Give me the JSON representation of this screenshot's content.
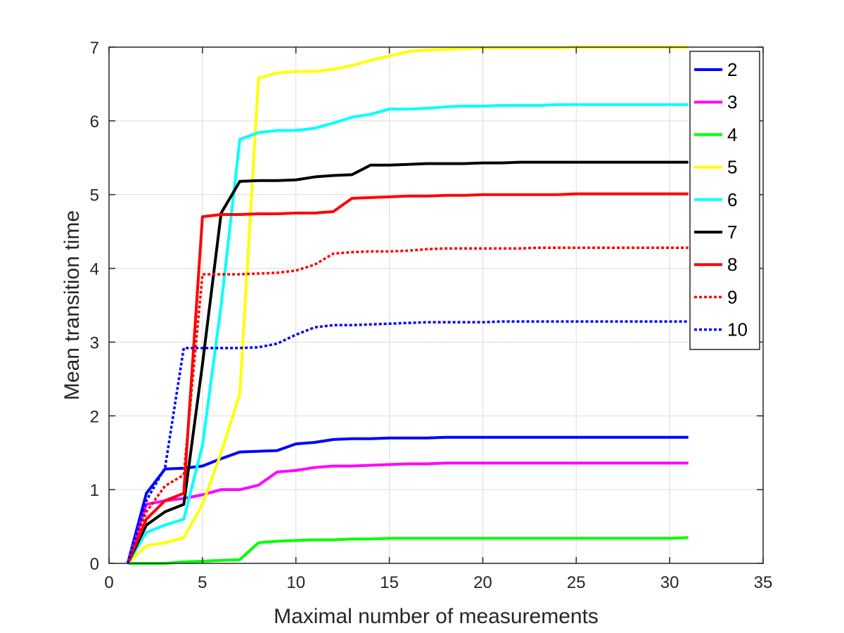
{
  "chart_data": {
    "type": "line",
    "xlabel": "Maximal number of measurements",
    "ylabel": "Mean transition time",
    "xlim": [
      0,
      35
    ],
    "ylim": [
      0,
      7
    ],
    "xticks": [
      0,
      5,
      10,
      15,
      20,
      25,
      30,
      35
    ],
    "yticks": [
      0,
      1,
      2,
      3,
      4,
      5,
      6,
      7
    ],
    "grid": true,
    "legend_position": "top-right",
    "x": [
      1,
      2,
      3,
      4,
      5,
      6,
      7,
      8,
      9,
      10,
      11,
      12,
      13,
      14,
      15,
      16,
      17,
      18,
      19,
      20,
      21,
      22,
      23,
      24,
      25,
      26,
      27,
      28,
      29,
      30,
      31
    ],
    "series": [
      {
        "name": "2",
        "color": "#0000ff",
        "dash": "solid",
        "values": [
          0,
          0.95,
          1.28,
          1.29,
          1.32,
          1.42,
          1.51,
          1.52,
          1.53,
          1.62,
          1.64,
          1.68,
          1.69,
          1.69,
          1.7,
          1.7,
          1.7,
          1.71,
          1.71,
          1.71,
          1.71,
          1.71,
          1.71,
          1.71,
          1.71,
          1.71,
          1.71,
          1.71,
          1.71,
          1.71,
          1.71
        ]
      },
      {
        "name": "3",
        "color": "#ff00ff",
        "dash": "solid",
        "values": [
          0,
          0.8,
          0.85,
          0.88,
          0.93,
          1.0,
          1.0,
          1.06,
          1.24,
          1.26,
          1.3,
          1.32,
          1.32,
          1.33,
          1.34,
          1.35,
          1.35,
          1.36,
          1.36,
          1.36,
          1.36,
          1.36,
          1.36,
          1.36,
          1.36,
          1.36,
          1.36,
          1.36,
          1.36,
          1.36,
          1.36
        ]
      },
      {
        "name": "4",
        "color": "#00ff00",
        "dash": "solid",
        "values": [
          0,
          0.0,
          0.0,
          0.02,
          0.03,
          0.04,
          0.05,
          0.28,
          0.3,
          0.31,
          0.32,
          0.32,
          0.33,
          0.33,
          0.34,
          0.34,
          0.34,
          0.34,
          0.34,
          0.34,
          0.34,
          0.34,
          0.34,
          0.34,
          0.34,
          0.34,
          0.34,
          0.34,
          0.34,
          0.34,
          0.35
        ]
      },
      {
        "name": "5",
        "color": "#ffff00",
        "dash": "solid",
        "values": [
          0,
          0.24,
          0.28,
          0.35,
          0.8,
          1.5,
          2.3,
          6.58,
          6.65,
          6.67,
          6.67,
          6.7,
          6.75,
          6.82,
          6.88,
          6.94,
          6.96,
          6.97,
          6.98,
          6.99,
          6.99,
          6.99,
          6.99,
          6.99,
          7.0,
          7.0,
          7.0,
          7.0,
          7.0,
          7.0,
          7.0
        ]
      },
      {
        "name": "6",
        "color": "#00ffff",
        "dash": "solid",
        "values": [
          0,
          0.42,
          0.52,
          0.6,
          1.6,
          3.5,
          5.75,
          5.84,
          5.87,
          5.87,
          5.9,
          5.97,
          6.05,
          6.09,
          6.16,
          6.16,
          6.17,
          6.19,
          6.2,
          6.2,
          6.21,
          6.21,
          6.21,
          6.22,
          6.22,
          6.22,
          6.22,
          6.22,
          6.22,
          6.22,
          6.22
        ]
      },
      {
        "name": "7",
        "color": "#000000",
        "dash": "solid",
        "values": [
          0,
          0.52,
          0.7,
          0.8,
          2.7,
          4.75,
          5.18,
          5.19,
          5.19,
          5.2,
          5.24,
          5.26,
          5.27,
          5.4,
          5.4,
          5.41,
          5.42,
          5.42,
          5.42,
          5.43,
          5.43,
          5.44,
          5.44,
          5.44,
          5.44,
          5.44,
          5.44,
          5.44,
          5.44,
          5.44,
          5.44
        ]
      },
      {
        "name": "8",
        "color": "#ff0000",
        "dash": "solid",
        "values": [
          0,
          0.6,
          0.85,
          0.95,
          4.7,
          4.73,
          4.73,
          4.74,
          4.74,
          4.75,
          4.75,
          4.77,
          4.95,
          4.96,
          4.97,
          4.98,
          4.98,
          4.99,
          4.99,
          5.0,
          5.0,
          5.0,
          5.0,
          5.0,
          5.01,
          5.01,
          5.01,
          5.01,
          5.01,
          5.01,
          5.01
        ]
      },
      {
        "name": "9",
        "color": "#ff0000",
        "dash": "dotted",
        "values": [
          0,
          0.7,
          1.05,
          1.2,
          3.92,
          3.92,
          3.92,
          3.93,
          3.94,
          3.97,
          4.05,
          4.2,
          4.22,
          4.23,
          4.23,
          4.24,
          4.26,
          4.27,
          4.27,
          4.27,
          4.27,
          4.27,
          4.28,
          4.28,
          4.28,
          4.28,
          4.28,
          4.28,
          4.28,
          4.28,
          4.28
        ]
      },
      {
        "name": "10",
        "color": "#0000ff",
        "dash": "dotted",
        "values": [
          0,
          0.85,
          1.3,
          2.92,
          2.92,
          2.92,
          2.92,
          2.93,
          2.98,
          3.1,
          3.2,
          3.23,
          3.23,
          3.24,
          3.25,
          3.26,
          3.27,
          3.27,
          3.27,
          3.27,
          3.28,
          3.28,
          3.28,
          3.28,
          3.28,
          3.28,
          3.28,
          3.28,
          3.28,
          3.28,
          3.28
        ]
      }
    ]
  }
}
